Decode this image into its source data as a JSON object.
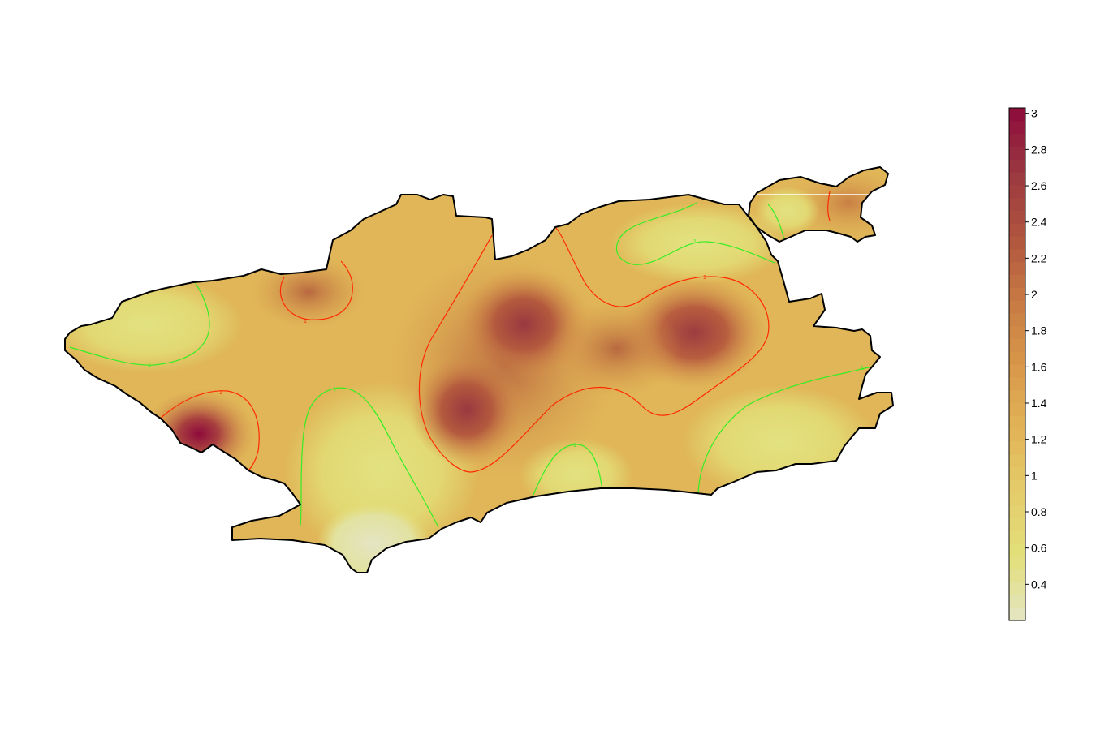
{
  "colors": {
    "boundary": "#000000",
    "contour_low": "#33ee22",
    "contour_high": "#ff2a00",
    "scale": [
      "#e4e4c4",
      "#e2e07a",
      "#e4cc6a",
      "#e2b456",
      "#d8974a",
      "#c77a44",
      "#b0543e",
      "#9a3840",
      "#8e0a3c"
    ]
  },
  "colorbar": {
    "ticks": [
      "0.4",
      "0.6",
      "0.8",
      "1",
      "1.2",
      "1.4",
      "1.6",
      "1.8",
      "2",
      "2.2",
      "2.4",
      "2.6",
      "2.8",
      "3"
    ],
    "min": 0.2,
    "max": 3.03
  },
  "contours": {
    "green_level_label": "1",
    "red_level_label": "1"
  }
}
